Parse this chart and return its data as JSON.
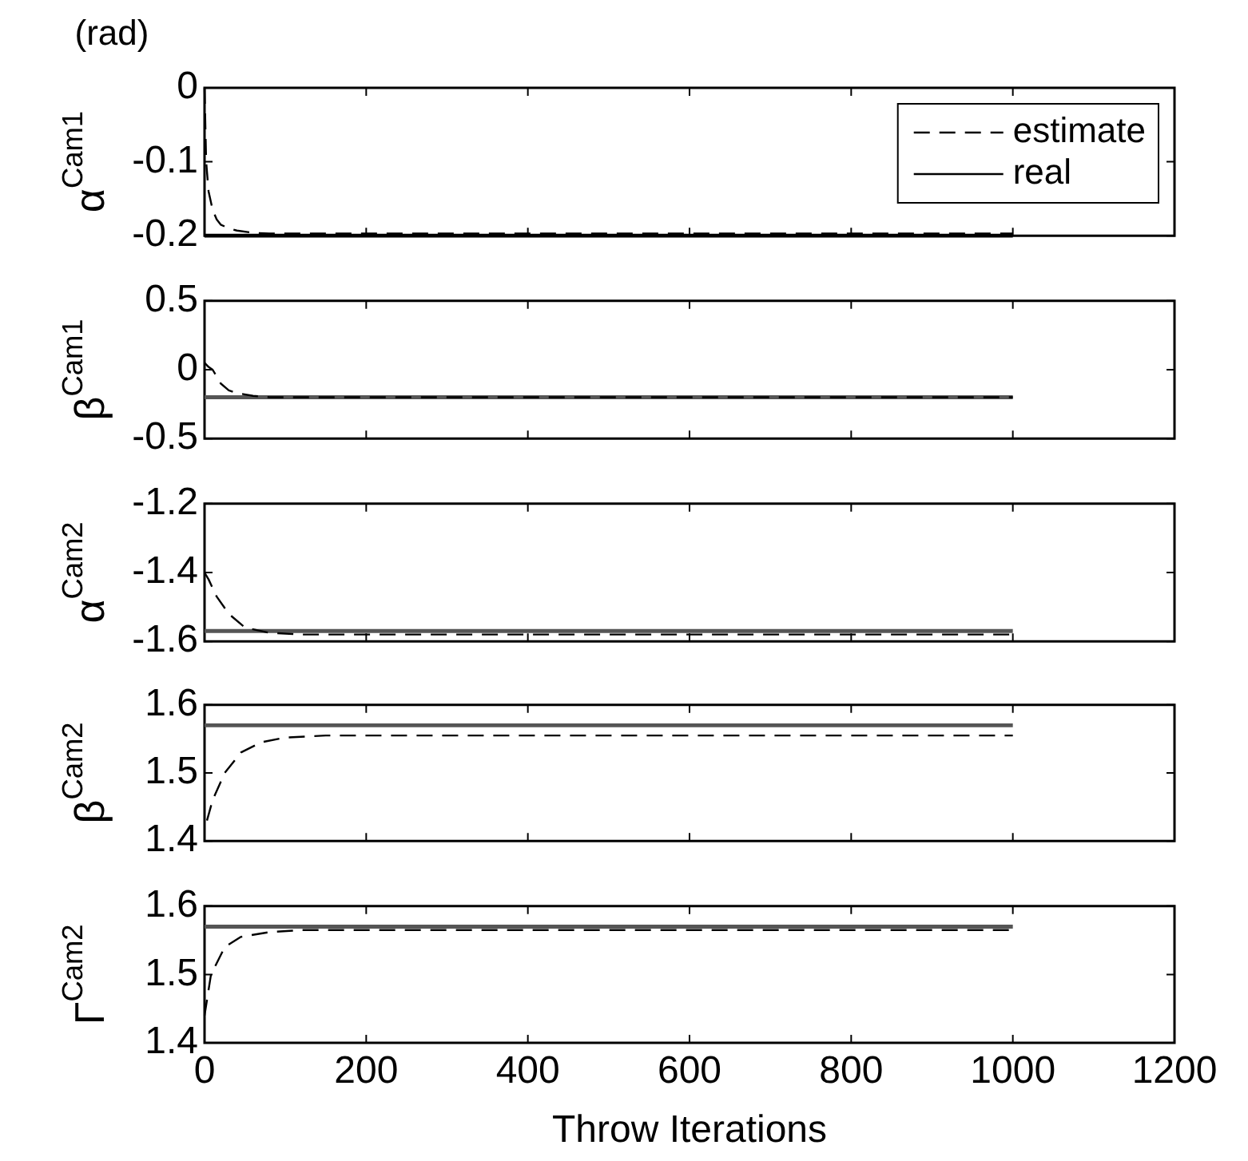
{
  "chart_data": [
    {
      "type": "line",
      "annotations": [
        "(rad)"
      ],
      "ylabel": "α$^{Cam1}$",
      "xlim": [
        0,
        1200
      ],
      "xticks": [
        0,
        200,
        400,
        600,
        800,
        1000,
        1200
      ],
      "ylim": [
        -0.2,
        0
      ],
      "yticks": [
        -0.2,
        -0.1,
        0
      ],
      "tick_labels": "y",
      "legend": "top right",
      "series": [
        {
          "name": "estimate",
          "color": "#000000",
          "line_style": "dashed",
          "x": [
            0,
            2,
            5,
            10,
            15,
            20,
            30,
            40,
            60,
            80,
            100,
            150,
            200,
            400,
            600,
            800,
            1000
          ],
          "values": [
            0,
            -0.1,
            -0.14,
            -0.165,
            -0.178,
            -0.185,
            -0.19,
            -0.193,
            -0.196,
            -0.197,
            -0.197,
            -0.197,
            -0.197,
            -0.197,
            -0.197,
            -0.197,
            -0.197
          ]
        },
        {
          "name": "real",
          "color": "#000000",
          "line_style": "solid",
          "x": [
            0,
            1000
          ],
          "values": [
            -0.2,
            -0.2
          ]
        }
      ]
    },
    {
      "type": "line",
      "ylabel": "β$^{Cam1}$",
      "xlim": [
        0,
        1200
      ],
      "xticks": [
        0,
        200,
        400,
        600,
        800,
        1000,
        1200
      ],
      "ylim": [
        -0.5,
        0.5
      ],
      "yticks": [
        -0.5,
        0,
        0.5
      ],
      "tick_labels": "y",
      "series": [
        {
          "color": "#000000",
          "line_style": "dashed",
          "x": [
            0,
            5,
            10,
            20,
            30,
            40,
            60,
            80,
            100,
            200,
            400,
            600,
            800,
            1000
          ],
          "values": [
            0.05,
            0.02,
            0,
            -0.1,
            -0.15,
            -0.17,
            -0.19,
            -0.2,
            -0.2,
            -0.2,
            -0.2,
            -0.2,
            -0.2,
            -0.2
          ]
        },
        {
          "color": "#555555",
          "line_style": "solid",
          "x": [
            0,
            1000
          ],
          "values": [
            -0.2,
            -0.2
          ]
        }
      ]
    },
    {
      "type": "line",
      "ylabel": "α$^{Cam2}$",
      "xlim": [
        0,
        1200
      ],
      "xticks": [
        0,
        200,
        400,
        600,
        800,
        1000,
        1200
      ],
      "ylim": [
        -1.6,
        -1.2
      ],
      "yticks": [
        -1.6,
        -1.4,
        -1.2
      ],
      "tick_labels": "y",
      "series": [
        {
          "color": "#000000",
          "line_style": "dashed",
          "x": [
            0,
            5,
            15,
            30,
            50,
            80,
            120,
            200,
            400,
            600,
            800,
            1000
          ],
          "values": [
            -1.4,
            -1.42,
            -1.47,
            -1.52,
            -1.56,
            -1.575,
            -1.58,
            -1.58,
            -1.58,
            -1.58,
            -1.58,
            -1.58
          ]
        },
        {
          "color": "#555555",
          "line_style": "solid",
          "x": [
            0,
            1000
          ],
          "values": [
            -1.57,
            -1.57
          ]
        }
      ]
    },
    {
      "type": "line",
      "ylabel": "β$^{Cam2}$",
      "xlim": [
        0,
        1200
      ],
      "xticks": [
        0,
        200,
        400,
        600,
        800,
        1000,
        1200
      ],
      "ylim": [
        1.4,
        1.6
      ],
      "yticks": [
        1.4,
        1.5,
        1.6
      ],
      "tick_labels": "y",
      "series": [
        {
          "color": "#000000",
          "line_style": "dashed",
          "x": [
            3,
            10,
            25,
            45,
            70,
            100,
            150,
            200,
            400,
            600,
            800,
            1000
          ],
          "values": [
            1.43,
            1.46,
            1.5,
            1.53,
            1.545,
            1.552,
            1.555,
            1.555,
            1.555,
            1.555,
            1.555,
            1.555
          ]
        },
        {
          "color": "#555555",
          "line_style": "solid",
          "x": [
            0,
            1000
          ],
          "values": [
            1.57,
            1.57
          ]
        }
      ]
    },
    {
      "type": "line",
      "ylabel": "Γ$^{Cam2}$",
      "xlabel": "Throw Iterations",
      "xlim": [
        0,
        1200
      ],
      "xticks": [
        0,
        200,
        400,
        600,
        800,
        1000,
        1200
      ],
      "ylim": [
        1.4,
        1.6
      ],
      "yticks": [
        1.4,
        1.5,
        1.6
      ],
      "series": [
        {
          "color": "#000000",
          "line_style": "dashed",
          "x": [
            0,
            8,
            25,
            45,
            80,
            120,
            200,
            400,
            600,
            800,
            1000
          ],
          "values": [
            1.44,
            1.5,
            1.54,
            1.555,
            1.562,
            1.565,
            1.565,
            1.565,
            1.565,
            1.565,
            1.565
          ]
        },
        {
          "color": "#555555",
          "line_style": "solid",
          "x": [
            0,
            1000
          ],
          "values": [
            1.57,
            1.57
          ]
        }
      ]
    }
  ]
}
